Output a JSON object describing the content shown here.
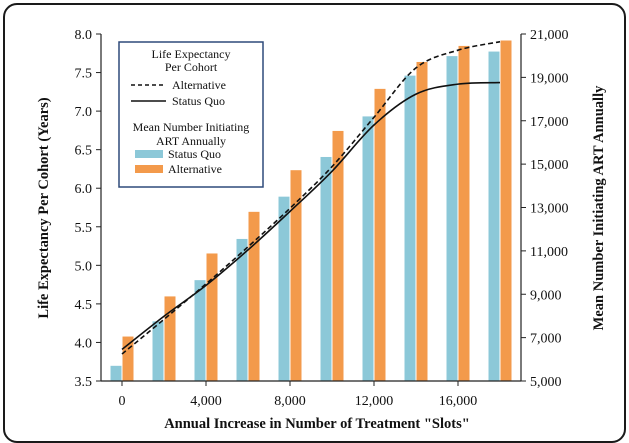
{
  "chart_data": {
    "type": "bar",
    "x": [
      0,
      2000,
      4000,
      6000,
      8000,
      10000,
      12000,
      14000,
      16000,
      18000
    ],
    "x_tick_labels": [
      "0",
      "4,000",
      "8,000",
      "12,000",
      "16,000"
    ],
    "xlabel": "Annual Increase in Number of Treatment \"Slots\"",
    "ylabel_left": "Life Expectancy Per Cohort (Years)",
    "ylabel_right": "Mean Number Initiating ART Annually",
    "ylim_left": [
      3.5,
      8.0
    ],
    "ylim_right": [
      5000,
      21000
    ],
    "left_tick_labels": [
      "3.5",
      "4.0",
      "4.5",
      "5.0",
      "5.5",
      "6.0",
      "6.5",
      "7.0",
      "7.5",
      "8.0"
    ],
    "right_tick_labels": [
      "5,000",
      "7,000",
      "9,000",
      "11,000",
      "13,000",
      "15,000",
      "17,000",
      "19,000",
      "21,000"
    ],
    "bar_series": [
      {
        "name": "Status Quo",
        "axis": "right",
        "color": "#8cc8d8",
        "values": [
          5700,
          7750,
          9650,
          11550,
          13500,
          15330,
          17200,
          19080,
          19980,
          20190
        ]
      },
      {
        "name": "Alternative",
        "axis": "right",
        "color": "#f39a4b",
        "values": [
          7050,
          8900,
          10880,
          12800,
          14720,
          16530,
          18470,
          19710,
          20450,
          20700
        ]
      }
    ],
    "line_series": [
      {
        "name": "Alternative",
        "axis": "left",
        "style": "dashed",
        "x": [
          0,
          2000,
          4000,
          6000,
          8000,
          10000,
          12000,
          14000,
          16000,
          18000
        ],
        "values": [
          3.85,
          4.3,
          4.76,
          5.24,
          5.74,
          6.28,
          6.92,
          7.56,
          7.79,
          7.9
        ]
      },
      {
        "name": "Status Quo",
        "axis": "left",
        "style": "solid",
        "x": [
          0,
          2000,
          4000,
          6000,
          8000,
          10000,
          12000,
          14000,
          16000,
          18000
        ],
        "values": [
          3.91,
          4.34,
          4.74,
          5.2,
          5.7,
          6.22,
          6.82,
          7.22,
          7.35,
          7.37
        ]
      }
    ],
    "legend": {
      "position": "top-left",
      "line_header": [
        "Life Expectancy",
        "Per Cohort"
      ],
      "bar_header": [
        "Mean Number Initiating",
        "ART Annually"
      ]
    },
    "colors": {
      "status_quo_bar": "#8cc8d8",
      "alternative_bar": "#f39a4b",
      "legend_border": "#2e4a7a"
    }
  }
}
